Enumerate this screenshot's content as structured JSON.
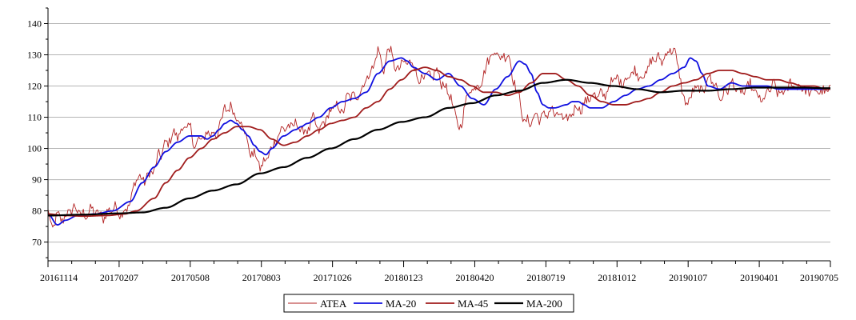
{
  "chart_data": {
    "type": "line",
    "x_tick_labels": [
      "20161114",
      "20170207",
      "20170508",
      "20170803",
      "20171026",
      "20180123",
      "20180420",
      "20180719",
      "20181012",
      "20190107",
      "20190401",
      "20190705"
    ],
    "ylim": [
      64,
      145
    ],
    "y_ticks": [
      70,
      80,
      90,
      100,
      110,
      120,
      130,
      140
    ],
    "grid": "horizontal",
    "legend_position": "bottom",
    "n_points": 665,
    "series": [
      {
        "name": "ATEA",
        "color": "#b22222",
        "anchors_x": [
          0,
          3,
          8,
          15,
          25,
          40,
          60,
          70,
          75,
          77,
          80,
          85,
          90,
          95,
          100,
          110,
          115,
          120,
          125,
          130,
          135,
          140,
          143,
          145,
          148,
          150,
          155,
          160,
          163,
          165,
          168,
          170,
          175,
          180,
          185,
          190,
          195,
          200,
          203,
          205,
          210,
          215,
          220,
          225,
          230,
          235,
          240,
          245,
          250,
          255,
          258,
          260,
          265,
          270,
          275,
          280,
          285,
          290,
          295,
          300,
          305,
          310,
          315,
          320,
          325,
          330,
          335,
          340,
          345,
          350,
          355,
          360,
          365,
          370,
          375,
          380,
          385,
          390,
          395,
          400,
          405,
          410,
          415,
          420,
          425,
          430,
          435,
          440,
          442,
          445,
          450,
          455,
          458,
          460,
          465,
          470,
          475,
          480,
          485,
          490,
          495,
          500,
          505,
          510,
          515,
          520,
          525,
          530,
          535,
          540,
          545,
          550,
          555,
          560,
          565,
          570,
          575,
          580,
          585,
          590,
          595,
          600,
          605,
          610,
          615,
          620,
          625,
          630,
          635,
          640,
          645,
          650,
          655,
          660,
          664
        ],
        "anchors_y": [
          80,
          73,
          78,
          79,
          80,
          79,
          80,
          82,
          90,
          91,
          91,
          91,
          92,
          99,
          102,
          104,
          108,
          106,
          100,
          104,
          105,
          104,
          103,
          108,
          110,
          114,
          112,
          110,
          109,
          108,
          106,
          99,
          97,
          95,
          97,
          99,
          104,
          108,
          107,
          106,
          107,
          107,
          106,
          108,
          106,
          110,
          111,
          113,
          113,
          117,
          116,
          115,
          119,
          123,
          124,
          131,
          127,
          132,
          124,
          128,
          128,
          126,
          122,
          124,
          122,
          124,
          122,
          118,
          110,
          107,
          117,
          118,
          120,
          125,
          129,
          130,
          130,
          131,
          121,
          116,
          109,
          108,
          110,
          111,
          112,
          110,
          111,
          110,
          109,
          111,
          113,
          115,
          116,
          116,
          116,
          118,
          119,
          121,
          122,
          123,
          123,
          124,
          124,
          126,
          128,
          129,
          131,
          131,
          126,
          116,
          115,
          119,
          119,
          123,
          120,
          117,
          119,
          120,
          118,
          119,
          120,
          117,
          116,
          118,
          119,
          118,
          119,
          120,
          119,
          121,
          118,
          117,
          119,
          119,
          119
        ],
        "anchors_add": true
      },
      {
        "name": "MA-20",
        "color": "#1010e0",
        "anchors_x": [
          0,
          8,
          15,
          25,
          40,
          55,
          70,
          80,
          90,
          100,
          110,
          120,
          130,
          135,
          140,
          145,
          150,
          155,
          160,
          165,
          170,
          175,
          180,
          185,
          190,
          200,
          210,
          215,
          220,
          230,
          240,
          250,
          260,
          270,
          280,
          290,
          300,
          305,
          310,
          320,
          330,
          340,
          350,
          360,
          370,
          380,
          390,
          400,
          405,
          410,
          415,
          420,
          425,
          430,
          440,
          445,
          450,
          455,
          460,
          470,
          480,
          490,
          500,
          510,
          520,
          530,
          540,
          545,
          550,
          555,
          560,
          570,
          580,
          590,
          600,
          610,
          620,
          630,
          640,
          650,
          660,
          664
        ],
        "anchors_y": [
          79,
          75.5,
          77,
          78.5,
          79,
          80,
          83,
          89,
          94,
          99,
          102,
          104,
          104,
          103,
          104,
          106,
          108,
          109,
          108,
          106,
          104,
          101,
          99,
          98,
          100,
          104,
          106,
          107,
          108,
          110,
          113,
          115,
          116,
          118,
          124,
          128,
          129,
          128,
          126,
          124,
          122,
          124,
          120,
          116,
          114,
          119,
          123,
          128,
          127,
          124,
          118,
          114,
          113,
          113,
          114,
          115,
          115,
          114,
          113,
          113,
          115,
          117,
          119,
          120,
          122,
          124,
          126,
          129,
          128,
          124,
          120,
          119,
          121,
          120,
          120,
          120,
          119,
          119,
          119,
          119,
          119,
          119
        ],
        "anchors_add": false
      },
      {
        "name": "MA-45",
        "color": "#a01c1c",
        "anchors_x": [
          0,
          15,
          30,
          50,
          65,
          75,
          90,
          100,
          110,
          120,
          130,
          140,
          150,
          160,
          170,
          180,
          190,
          200,
          210,
          220,
          230,
          240,
          250,
          260,
          270,
          280,
          290,
          300,
          310,
          320,
          330,
          340,
          350,
          360,
          370,
          380,
          390,
          400,
          410,
          420,
          430,
          440,
          450,
          460,
          470,
          480,
          490,
          500,
          510,
          520,
          530,
          540,
          550,
          560,
          570,
          580,
          590,
          600,
          610,
          620,
          630,
          640,
          650,
          660,
          664
        ],
        "anchors_y": [
          79,
          78.5,
          78.3,
          78.5,
          79,
          80,
          84,
          89,
          93,
          97,
          100,
          103,
          105,
          107,
          107,
          106,
          103,
          101,
          102,
          104,
          106,
          108,
          109,
          110,
          113,
          115,
          119,
          122,
          125,
          126,
          125,
          123,
          122,
          120,
          118,
          118,
          117,
          118,
          121,
          124,
          124,
          122,
          120,
          117,
          115,
          114,
          114,
          115,
          116,
          118,
          120,
          121,
          122,
          124,
          125,
          125,
          124,
          123,
          122,
          122,
          121,
          120,
          120,
          119,
          119
        ],
        "anchors_add": false
      },
      {
        "name": "MA-200",
        "color": "#000000",
        "anchors_x": [
          0,
          30,
          60,
          80,
          100,
          120,
          140,
          160,
          180,
          200,
          220,
          240,
          260,
          280,
          300,
          320,
          340,
          360,
          380,
          400,
          420,
          440,
          460,
          480,
          500,
          520,
          540,
          560,
          580,
          600,
          620,
          640,
          660,
          664
        ],
        "anchors_y": [
          78.5,
          78.8,
          79.2,
          79.5,
          81,
          84,
          86.5,
          88.5,
          92,
          94,
          97,
          100,
          103,
          106,
          108.5,
          110,
          113,
          114.5,
          117,
          118.5,
          121,
          122,
          121,
          120,
          119,
          118,
          118.5,
          118.5,
          119,
          119.5,
          119.5,
          119.5,
          119.3,
          119.3
        ],
        "anchors_add": false
      }
    ]
  }
}
